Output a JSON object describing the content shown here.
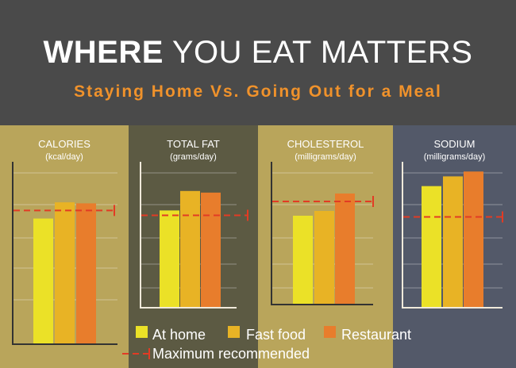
{
  "header": {
    "title_bold": "WHERE",
    "title_rest": "YOU EAT MATTERS",
    "subtitle": "Staying Home Vs. Going Out for a Meal"
  },
  "legend": {
    "at_home": "At home",
    "fast_food": "Fast food",
    "restaurant": "Restaurant",
    "maximum": "Maximum recommended"
  },
  "colors": {
    "at_home": "#ebe127",
    "fast_food": "#e8b325",
    "restaurant": "#e87d2c",
    "maximum": "#e23b24",
    "header_bg": "#4a4a4a",
    "subtitle": "#f0922b",
    "panel_calories": "#b9a55b",
    "panel_fat": "#5c5a43",
    "panel_cholesterol": "#b9a55b",
    "panel_sodium": "#535969"
  },
  "chart_data": [
    {
      "type": "bar",
      "title": "CALORIES",
      "subtitle": "(kcal/day)",
      "categories": [
        "At home",
        "Fast food",
        "Restaurant"
      ],
      "values": [
        62,
        70,
        69.5
      ],
      "max_recommended": 66,
      "ylim": [
        0,
        90
      ],
      "grid": true
    },
    {
      "type": "bar",
      "title": "TOTAL FAT",
      "subtitle": "(grams/day)",
      "categories": [
        "At home",
        "Fast food",
        "Restaurant"
      ],
      "values": [
        60,
        72,
        71
      ],
      "max_recommended": 57,
      "ylim": [
        0,
        90
      ],
      "grid": true
    },
    {
      "type": "bar",
      "title": "CHOLESTEROL",
      "subtitle": "(milligrams/day)",
      "categories": [
        "At home",
        "Fast food",
        "Restaurant"
      ],
      "values": [
        56,
        59,
        70
      ],
      "max_recommended": 65,
      "ylim": [
        0,
        90
      ],
      "grid": true
    },
    {
      "type": "bar",
      "title": "SODIUM",
      "subtitle": "(milligrams/day)",
      "categories": [
        "At home",
        "Fast food",
        "Restaurant"
      ],
      "values": [
        75,
        81,
        84
      ],
      "max_recommended": 56,
      "ylim": [
        0,
        90
      ],
      "grid": true
    }
  ]
}
